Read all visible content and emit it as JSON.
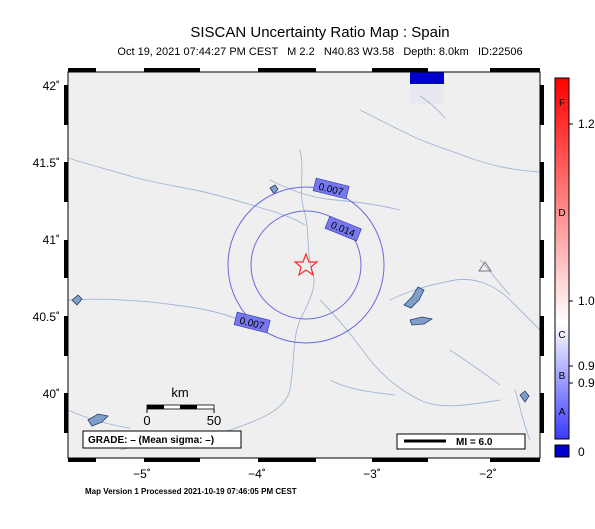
{
  "title": "SISCAN Uncertainty Ratio Map : Spain",
  "subtitle": "Oct 19, 2021 07:44:27 PM CEST   M 2.2   N40.83 W3.58   Depth: 8.0km   ID:22506",
  "footer": "Map Version 1 Processed 2021-10-19 07:46:05 PM CEST",
  "axes": {
    "lat_ticks": [
      "42˚",
      "41.5˚",
      "41˚",
      "40.5˚",
      "40˚"
    ],
    "lon_ticks": [
      "−5˚",
      "−4˚",
      "−3˚",
      "−2˚"
    ]
  },
  "contours": [
    "0.007",
    "0.014",
    "0.007"
  ],
  "scale_bar": {
    "unit": "km",
    "zero": "0",
    "max": "50"
  },
  "grade_box": "GRADE: – (Mean sigma: –)",
  "mi_legend": "MI = 6.0",
  "colorbar": {
    "letters": [
      "F",
      "D",
      "C",
      "B",
      "A"
    ],
    "values": [
      "1.2",
      "1.0",
      "0.9",
      "0.9",
      "0"
    ],
    "colors": {
      "top": "#ff0000",
      "mid": "#ffffff",
      "bottom": "#3333ff"
    }
  },
  "epicenter": {
    "lat": 40.83,
    "lon": -3.58,
    "color": "#ff2a2a"
  }
}
